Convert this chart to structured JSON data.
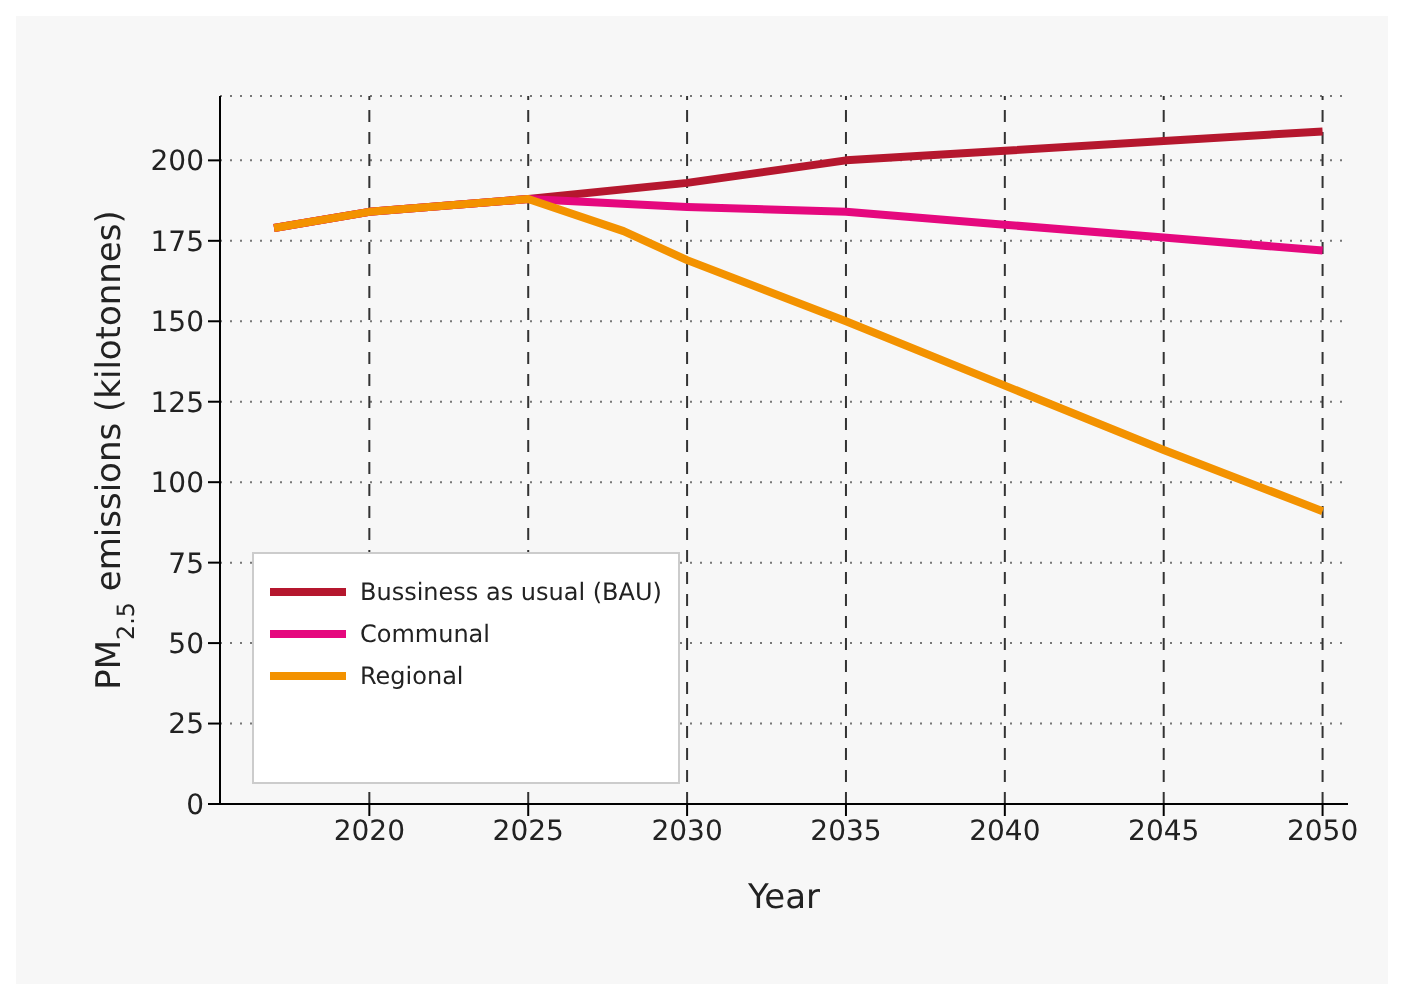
{
  "chart_data": {
    "type": "line",
    "xlabel": "Year",
    "ylabel": "PM$_{2.5}$ emissions (kilotonnes)",
    "xlim": [
      2015.3,
      2050.8
    ],
    "xticks": [
      2020,
      2025,
      2030,
      2035,
      2040,
      2045,
      2050
    ],
    "ylim": [
      0,
      220
    ],
    "yticks": [
      0,
      25,
      50,
      75,
      100,
      125,
      150,
      175,
      200
    ],
    "grid": true,
    "legend": "left",
    "line_style": "solid",
    "marker": "none",
    "series": [
      {
        "name": "Bussiness as usual (BAU)",
        "color": "#b5172e",
        "x": [
          2017,
          2020,
          2025,
          2030,
          2035,
          2040,
          2045,
          2050
        ],
        "values": [
          179,
          184,
          188,
          193,
          200,
          203,
          206,
          209
        ]
      },
      {
        "name": "Communal",
        "color": "#e5087e",
        "x": [
          2017,
          2020,
          2025,
          2030,
          2035,
          2040,
          2045,
          2050
        ],
        "values": [
          179,
          184,
          188,
          185.5,
          184,
          180,
          176,
          172
        ]
      },
      {
        "name": "Regional",
        "color": "#f39200",
        "x": [
          2017,
          2020,
          2025,
          2028,
          2030,
          2035,
          2040,
          2045,
          2050
        ],
        "values": [
          179,
          184,
          188,
          178,
          169,
          150,
          130,
          110,
          91
        ]
      }
    ]
  }
}
